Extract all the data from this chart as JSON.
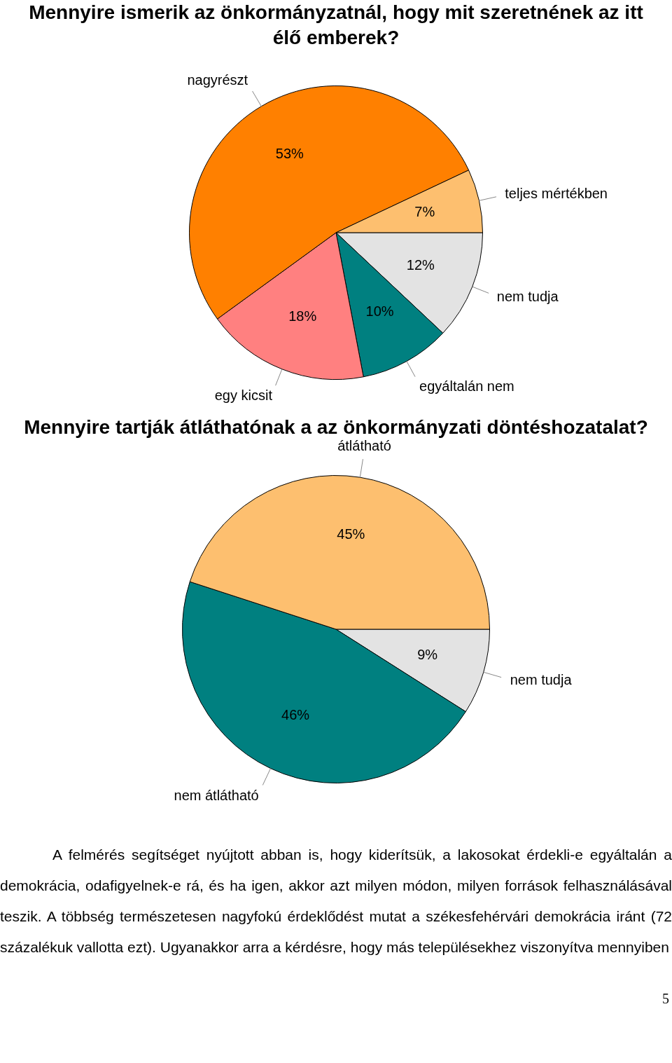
{
  "chart_data": [
    {
      "type": "pie",
      "title": "Mennyire ismerik az önkormányzatnál, hogy mit szeretnének az itt élő emberek?",
      "categories": [
        "nem tudja",
        "egyáltalán nem",
        "egy kicsit",
        "nagyrészt",
        "teljes mértékben"
      ],
      "values": [
        12,
        10,
        18,
        53,
        7
      ],
      "value_labels": [
        "12%",
        "10%",
        "18%",
        "53%",
        "7%"
      ],
      "colors": [
        "#e3e3e3",
        "#008080",
        "#ff8080",
        "#ff8000",
        "#fdbf6f"
      ],
      "legend": false
    },
    {
      "type": "pie",
      "title": "Mennyire tartják átláthatónak a az önkormányzati döntéshozatalat?",
      "categories": [
        "nem tudja",
        "nem átlátható",
        "átlátható"
      ],
      "values": [
        9,
        46,
        45
      ],
      "value_labels": [
        "9%",
        "46%",
        "45%"
      ],
      "colors": [
        "#e3e3e3",
        "#008080",
        "#fdbf6f"
      ],
      "legend": false,
      "annotations": [
        "A felmérés segítséget nyújtott abban is, hogy kiderítsük, a lakosokat érdekli-e egyáltalán a demokrácia, odafigyelnek-e rá, és ha igen, akkor azt milyen módon, milyen források felhasználásával teszik. A többség természetesen nagyfokú érdeklődést mutat a székesfehérvári demokrácia iránt (72 százalékuk vallotta ezt). Ugyanakkor arra a kérdésre, hogy más településekhez viszonyítva mennyiben",
        "5"
      ]
    }
  ]
}
